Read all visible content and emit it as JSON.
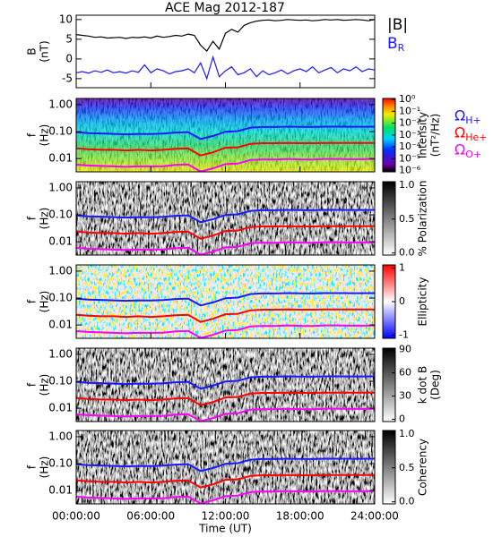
{
  "chart_data": [
    {
      "type": "line",
      "title": "ACE Mag 2012-187",
      "ylabel": [
        "B",
        "(nT)"
      ],
      "x": [
        0,
        0.5,
        1,
        1.5,
        2,
        2.5,
        3,
        3.5,
        4,
        4.5,
        5,
        5.5,
        6,
        6.5,
        7,
        7.5,
        8,
        8.5,
        9,
        9.5,
        10,
        10.5,
        11,
        11.5,
        12,
        12.5,
        13,
        13.5,
        14,
        14.5,
        15,
        15.5,
        16,
        16.5,
        17,
        17.5,
        18,
        18.5,
        19,
        19.5,
        20,
        20.5,
        21,
        21.5,
        22,
        22.5,
        23,
        23.5,
        24
      ],
      "series": [
        {
          "name": "|B|",
          "color": "#000000",
          "values": [
            6.2,
            6.0,
            5.8,
            5.5,
            5.6,
            5.3,
            5.4,
            5.5,
            5.2,
            5.5,
            5.4,
            5.6,
            5.3,
            5.8,
            5.5,
            5.7,
            6.0,
            5.8,
            6.3,
            6.0,
            3.5,
            2.0,
            4.5,
            2.5,
            6.5,
            7.5,
            6.8,
            8.5,
            9.2,
            9.6,
            9.8,
            9.9,
            9.7,
            9.8,
            10.0,
            9.9,
            9.8,
            9.9,
            9.7,
            9.8,
            10.0,
            9.9,
            10.0,
            9.8,
            9.9,
            10.0,
            9.9,
            9.7,
            10.0
          ]
        },
        {
          "name": "BR",
          "color": "#1a1aff",
          "values": [
            -3.5,
            -3.2,
            -3.6,
            -3.0,
            -3.4,
            -2.8,
            -3.5,
            -3.2,
            -3.6,
            -3.0,
            -3.4,
            -1.5,
            -3.5,
            -2.5,
            -3.0,
            -3.8,
            -3.2,
            -3.0,
            -2.5,
            -3.5,
            -1.0,
            -5.0,
            0.5,
            -4.5,
            -3.0,
            -2.0,
            -4.0,
            -3.5,
            -2.5,
            -4.5,
            -3.0,
            -4.0,
            -3.5,
            -2.8,
            -3.8,
            -3.0,
            -2.5,
            -3.2,
            -2.0,
            -3.5,
            -2.8,
            -2.2,
            -3.5,
            -2.5,
            -3.0,
            -2.0,
            -3.2,
            -2.5,
            -2.8
          ]
        }
      ],
      "ylim": [
        -7.3,
        11.1
      ],
      "yticks": [
        -5,
        0,
        5,
        10
      ]
    },
    {
      "type": "spectrogram",
      "ylabel": [
        "f",
        "(Hz)"
      ],
      "log": true,
      "ylim": [
        0.0032,
        1.7
      ],
      "yticks": [
        {
          "value": 1,
          "label": "1.00"
        },
        {
          "value": 0.1,
          "label": "0.10"
        },
        {
          "value": 0.01,
          "label": "0.01"
        }
      ],
      "colorbar": {
        "label": [
          "Intensity",
          "(nT²/Hz)"
        ],
        "colormap": "rainbow",
        "log": true,
        "lim": [
          8e-07,
          1.2
        ],
        "ticks": [
          {
            "value": 1,
            "label": "10⁰"
          },
          {
            "value": 0.1,
            "label": "10⁻¹"
          },
          {
            "value": 0.01,
            "label": "10⁻²"
          },
          {
            "value": 0.001,
            "label": "10⁻³"
          },
          {
            "value": 0.0001,
            "label": "10⁻⁴"
          },
          {
            "value": 1e-05,
            "label": "10⁻⁵"
          },
          {
            "value": 1e-06,
            "label": "10⁻⁶"
          }
        ]
      },
      "x": [
        0,
        1,
        2,
        3,
        4,
        5,
        6,
        7,
        8,
        9,
        10,
        11,
        12,
        13,
        14,
        15,
        16,
        17,
        18,
        19,
        20,
        21,
        22,
        23,
        24
      ],
      "series": [
        {
          "name": "ΩH+",
          "color": "#1a1aff",
          "values": [
            0.095,
            0.088,
            0.085,
            0.082,
            0.079,
            0.082,
            0.081,
            0.084,
            0.092,
            0.096,
            0.053,
            0.069,
            0.099,
            0.104,
            0.14,
            0.149,
            0.148,
            0.153,
            0.149,
            0.148,
            0.153,
            0.153,
            0.151,
            0.151,
            0.153
          ]
        },
        {
          "name": "ΩHe+",
          "color": "#ff0000",
          "values": [
            0.024,
            0.022,
            0.021,
            0.021,
            0.02,
            0.021,
            0.02,
            0.021,
            0.023,
            0.024,
            0.013,
            0.017,
            0.025,
            0.026,
            0.035,
            0.037,
            0.037,
            0.038,
            0.037,
            0.037,
            0.038,
            0.038,
            0.038,
            0.038,
            0.038
          ]
        },
        {
          "name": "ΩO+",
          "color": "#ff00ff",
          "values": [
            0.0059,
            0.0055,
            0.0053,
            0.0051,
            0.0049,
            0.0051,
            0.0051,
            0.0052,
            0.0058,
            0.006,
            0.0033,
            0.0043,
            0.0062,
            0.0065,
            0.0088,
            0.0093,
            0.0092,
            0.0096,
            0.0093,
            0.0092,
            0.0096,
            0.0096,
            0.0094,
            0.0094,
            0.0096
          ]
        }
      ]
    },
    {
      "type": "spectrogram",
      "ylabel": [
        "f",
        "(Hz)"
      ],
      "log": true,
      "ylim": [
        0.0032,
        1.7
      ],
      "yticks": [
        {
          "value": 1,
          "label": "1.00"
        },
        {
          "value": 0.1,
          "label": "0.10"
        },
        {
          "value": 0.01,
          "label": "0.01"
        }
      ],
      "colorbar": {
        "label": [
          "% Polarization"
        ],
        "colormap": "gray_r",
        "log": false,
        "lim": [
          -0.03,
          1.05
        ],
        "ticks": [
          {
            "value": 0,
            "label": "0.0"
          },
          {
            "value": 0.5,
            "label": "0.5"
          },
          {
            "value": 1,
            "label": "1.0"
          }
        ]
      }
    },
    {
      "type": "spectrogram",
      "ylabel": [
        "f",
        "(Hz)"
      ],
      "log": true,
      "ylim": [
        0.0032,
        1.7
      ],
      "yticks": [
        {
          "value": 1,
          "label": "1.00"
        },
        {
          "value": 0.1,
          "label": "0.10"
        },
        {
          "value": 0.01,
          "label": "0.01"
        }
      ],
      "colorbar": {
        "label": [
          "Ellipticity"
        ],
        "colormap": "bwr",
        "log": false,
        "lim": [
          -1.1,
          1.1
        ],
        "ticks": [
          -1,
          0,
          1
        ]
      }
    },
    {
      "type": "spectrogram",
      "ylabel": [
        "f",
        "(Hz)"
      ],
      "log": true,
      "ylim": [
        0.0032,
        1.7
      ],
      "yticks": [
        {
          "value": 1,
          "label": "1.00"
        },
        {
          "value": 0.1,
          "label": "0.10"
        },
        {
          "value": 0.01,
          "label": "0.01"
        }
      ],
      "colorbar": {
        "label": [
          "k dot B",
          "(Deg)"
        ],
        "colormap": "gray_r",
        "log": false,
        "lim": [
          -3,
          92
        ],
        "ticks": [
          0,
          30,
          60,
          90
        ]
      }
    },
    {
      "type": "spectrogram",
      "ylabel": [
        "f",
        "(Hz)"
      ],
      "log": true,
      "ylim": [
        0.0032,
        1.7
      ],
      "yticks": [
        {
          "value": 1,
          "label": "1.00"
        },
        {
          "value": 0.1,
          "label": "0.10"
        },
        {
          "value": 0.01,
          "label": "0.01"
        }
      ],
      "colorbar": {
        "label": [
          "Coherency"
        ],
        "colormap": "gray_r",
        "log": false,
        "lim": [
          -0.03,
          1.05
        ],
        "ticks": [
          {
            "value": 0,
            "label": "0.0"
          },
          {
            "value": 0.5,
            "label": "0.5"
          },
          {
            "value": 1,
            "label": "1.0"
          }
        ]
      },
      "xlim": [
        0,
        24
      ],
      "xticks": [
        {
          "value": 0,
          "label": "00:00:00"
        },
        {
          "value": 6,
          "label": "06:00:00"
        },
        {
          "value": 12,
          "label": "12:00:00"
        },
        {
          "value": 18,
          "label": "18:00:00"
        },
        {
          "value": 24,
          "label": "24:00:00"
        }
      ],
      "xlabel": "Time (UT)"
    }
  ]
}
